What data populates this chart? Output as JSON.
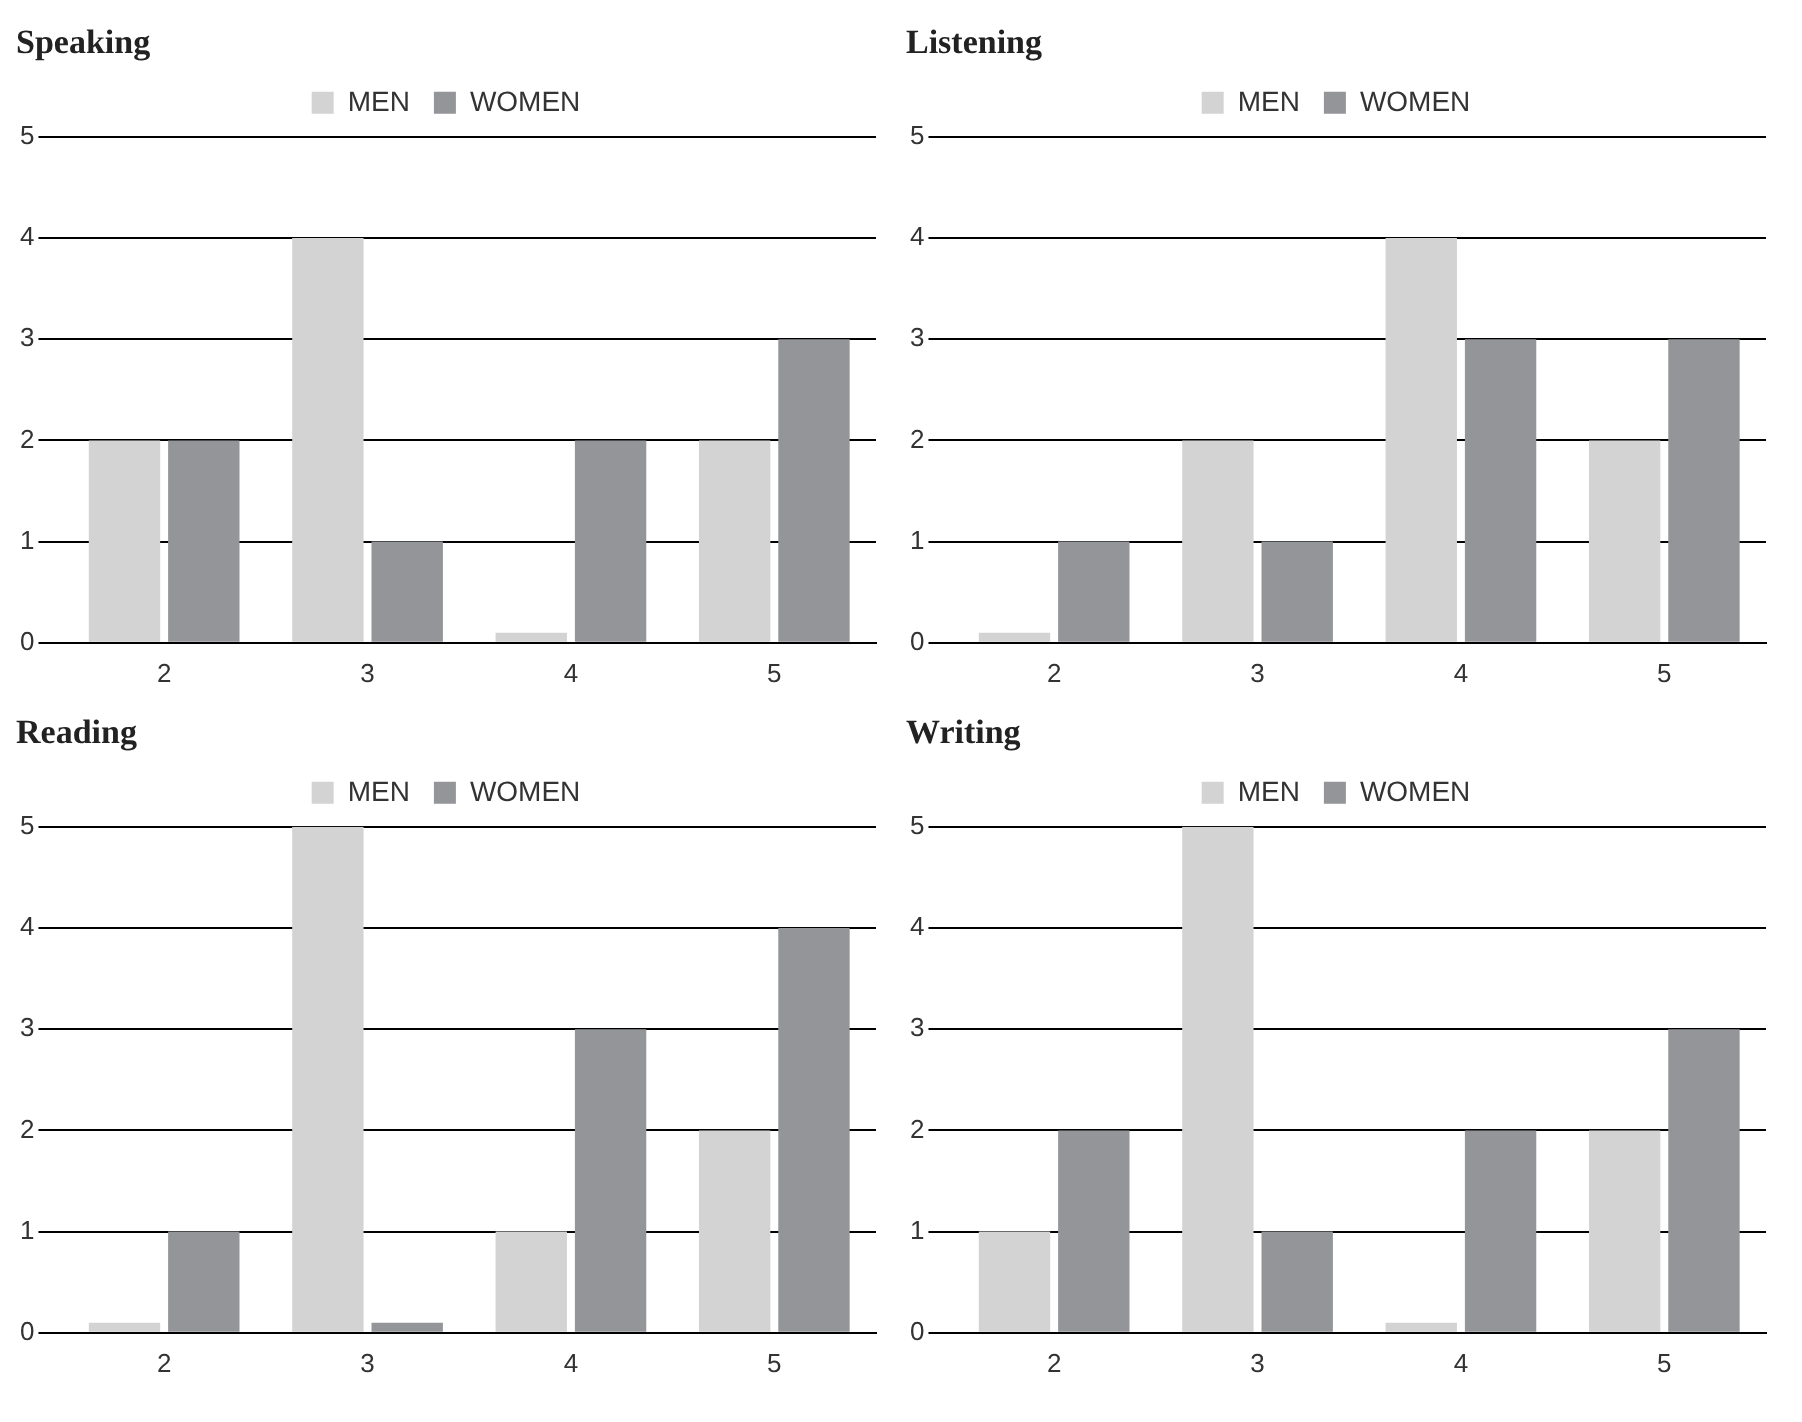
{
  "chart_data": [
    {
      "type": "bar",
      "title": "Speaking",
      "categories": [
        "2",
        "3",
        "4",
        "5"
      ],
      "series": [
        {
          "name": "MEN",
          "color": "#d3d3d3",
          "values": [
            2,
            4,
            0.1,
            2
          ]
        },
        {
          "name": "WOMEN",
          "color": "#939598",
          "values": [
            2,
            1,
            2,
            3
          ]
        }
      ],
      "ylim": [
        0,
        5
      ],
      "yticks": [
        0,
        1,
        2,
        3,
        4,
        5
      ],
      "grid": "y",
      "legend": "top"
    },
    {
      "type": "bar",
      "title": "Listening",
      "categories": [
        "2",
        "3",
        "4",
        "5"
      ],
      "series": [
        {
          "name": "MEN",
          "color": "#d3d3d3",
          "values": [
            0.1,
            2,
            4,
            2
          ]
        },
        {
          "name": "WOMEN",
          "color": "#939598",
          "values": [
            1,
            1,
            3,
            3
          ]
        }
      ],
      "ylim": [
        0,
        5
      ],
      "yticks": [
        0,
        1,
        2,
        3,
        4,
        5
      ],
      "grid": "y",
      "legend": "top"
    },
    {
      "type": "bar",
      "title": "Reading",
      "categories": [
        "2",
        "3",
        "4",
        "5"
      ],
      "series": [
        {
          "name": "MEN",
          "color": "#d3d3d3",
          "values": [
            0.1,
            5,
            1,
            2
          ]
        },
        {
          "name": "WOMEN",
          "color": "#939598",
          "values": [
            1,
            0.1,
            3,
            4
          ]
        }
      ],
      "ylim": [
        0,
        5
      ],
      "yticks": [
        0,
        1,
        2,
        3,
        4,
        5
      ],
      "grid": "y",
      "legend": "top"
    },
    {
      "type": "bar",
      "title": "Writing",
      "categories": [
        "2",
        "3",
        "4",
        "5"
      ],
      "series": [
        {
          "name": "MEN",
          "color": "#d3d3d3",
          "values": [
            1,
            5,
            0.1,
            2
          ]
        },
        {
          "name": "WOMEN",
          "color": "#939598",
          "values": [
            2,
            1,
            2,
            3
          ]
        }
      ],
      "ylim": [
        0,
        5
      ],
      "yticks": [
        0,
        1,
        2,
        3,
        4,
        5
      ],
      "grid": "y",
      "legend": "top"
    }
  ]
}
